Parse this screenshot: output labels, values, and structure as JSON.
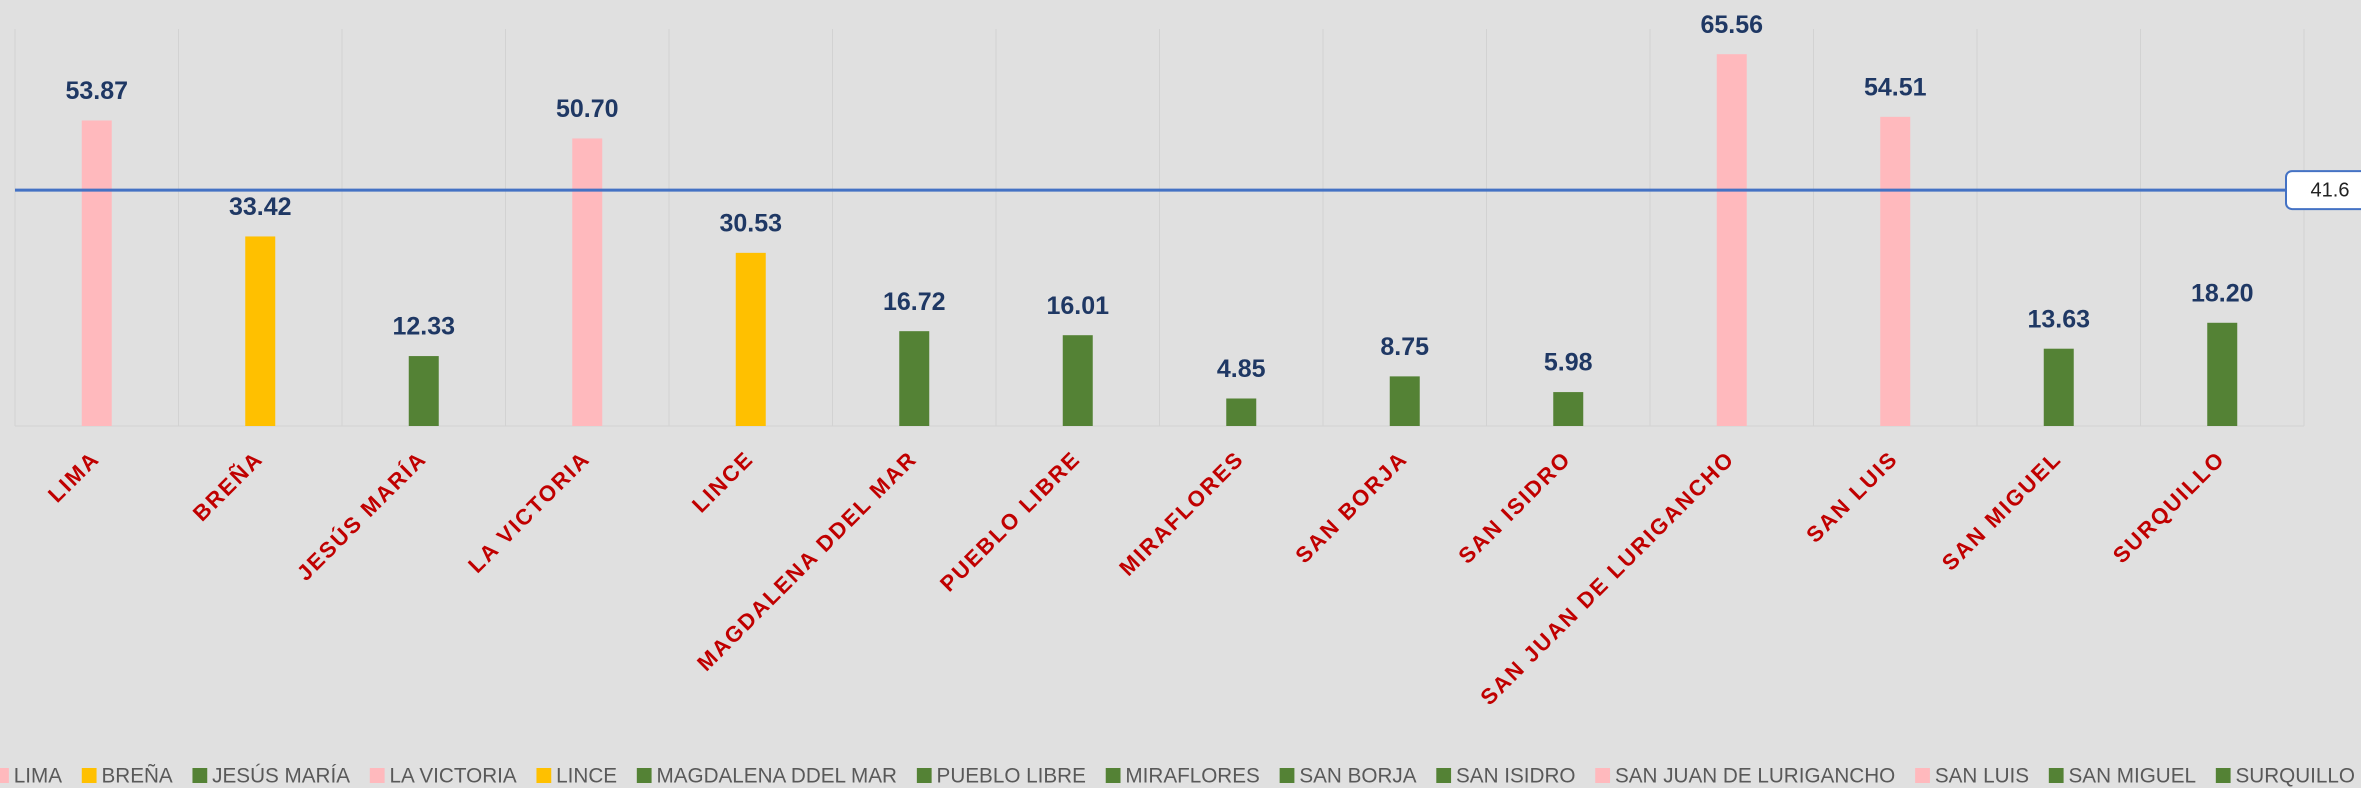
{
  "chart_data": {
    "type": "bar",
    "categories": [
      "LIMA",
      "BREÑA",
      "JESÚS MARÍA",
      "LA VICTORIA",
      "LINCE",
      "MAGDALENA DDEL MAR",
      "PUEBLO LIBRE",
      "MIRAFLORES",
      "SAN BORJA",
      "SAN ISIDRO",
      "SAN JUAN DE LURIGANCHO",
      "SAN LUIS",
      "SAN MIGUEL",
      "SURQUILLO"
    ],
    "values": [
      53.87,
      33.42,
      12.33,
      50.7,
      30.53,
      16.72,
      16.01,
      4.85,
      8.75,
      5.98,
      65.56,
      54.51,
      13.63,
      18.2
    ],
    "value_labels": [
      "53.87",
      "33.42",
      "12.33",
      "50.70",
      "30.53",
      "16.72",
      "16.01",
      "4.85",
      "8.75",
      "5.98",
      "65.56",
      "54.51",
      "13.63",
      "18.20"
    ],
    "colors": [
      "#ffb9bd",
      "#ffc000",
      "#548235",
      "#ffb9bd",
      "#ffc000",
      "#548235",
      "#548235",
      "#548235",
      "#548235",
      "#548235",
      "#ffb9bd",
      "#ffb9bd",
      "#548235",
      "#548235"
    ],
    "ylim": [
      0,
      70
    ],
    "reference_line": {
      "value": 41.6,
      "color": "#4472c4"
    },
    "legend": "bottom"
  }
}
